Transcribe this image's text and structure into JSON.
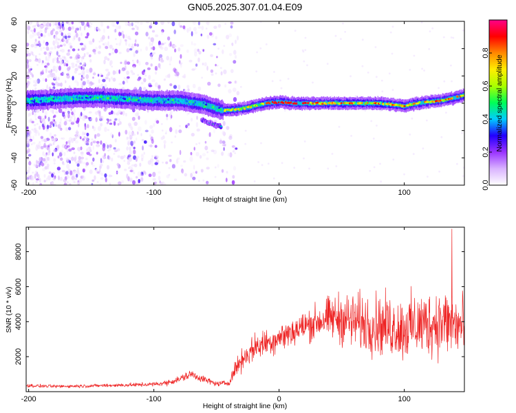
{
  "title": "GN05.2025.307.01.04.E09",
  "colors": {
    "snr_line": "#ee2222",
    "colorbar_stops": [
      "#ffffff",
      "#d9b3ff",
      "#9933ff",
      "#2200ff",
      "#00ccff",
      "#00ff55",
      "#aaff00",
      "#ffee00",
      "#ff8800",
      "#ff0000",
      "#ff0088"
    ]
  },
  "chart_data": [
    {
      "type": "heatmap",
      "name": "spectrogram",
      "title": "GN05.2025.307.01.04.E09",
      "xlabel": "Height of straight line (km)",
      "ylabel": "Frequency (Hz)",
      "xlim": [
        -202,
        148
      ],
      "ylim": [
        -60,
        60
      ],
      "xticks": [
        -200,
        -100,
        0,
        100
      ],
      "yticks": [
        60,
        40,
        20,
        0,
        -20,
        -40,
        -60
      ],
      "colorbar": {
        "label": "Normalized spectral amplitude",
        "range": [
          0,
          1
        ],
        "ticks": [
          0.0,
          0.2,
          0.4,
          0.6,
          0.8
        ]
      },
      "ridge": {
        "description": "dominant frequency ridge",
        "x": [
          -202,
          -180,
          -160,
          -140,
          -120,
          -100,
          -80,
          -60,
          -50,
          -45,
          -40,
          -30,
          -20,
          -10,
          0,
          10,
          20,
          30,
          40,
          50,
          60,
          70,
          80,
          90,
          100,
          110,
          120,
          130,
          140,
          148
        ],
        "y": [
          2,
          3,
          4,
          4,
          3,
          2,
          2,
          -1,
          -4,
          -5,
          -5,
          -4,
          -2,
          0,
          1,
          0,
          0,
          0,
          0,
          0,
          0,
          0,
          0,
          -1,
          -2,
          0,
          1,
          2,
          4,
          6
        ]
      },
      "secondary_branch": {
        "x": [
          -62,
          -58,
          -54,
          -50,
          -46
        ],
        "y": [
          -12,
          -14,
          -15,
          -16,
          -17
        ]
      }
    },
    {
      "type": "line",
      "name": "snr",
      "xlabel": "Height of straight line (km)",
      "ylabel": "SNR (10 * v/v)",
      "xlim": [
        -202,
        148
      ],
      "ylim": [
        0,
        9400
      ],
      "xticks": [
        -200,
        -100,
        0,
        100
      ],
      "yticks": [
        2000,
        4000,
        6000,
        8000
      ],
      "envelope": {
        "x": [
          -202,
          -180,
          -160,
          -140,
          -120,
          -100,
          -90,
          -80,
          -70,
          -60,
          -50,
          -40,
          -35,
          -30,
          -20,
          -10,
          0,
          10,
          20,
          30,
          40,
          50,
          60,
          70,
          80,
          90,
          100,
          110,
          120,
          130,
          140,
          148
        ],
        "mean": [
          350,
          300,
          320,
          350,
          380,
          420,
          500,
          700,
          1000,
          700,
          450,
          500,
          1300,
          1800,
          2500,
          2800,
          3100,
          3400,
          3700,
          4000,
          4200,
          4200,
          4000,
          3900,
          3800,
          3700,
          3600,
          3800,
          3900,
          4000,
          3800,
          3700
        ],
        "spread": [
          150,
          130,
          140,
          150,
          160,
          180,
          230,
          300,
          400,
          300,
          200,
          250,
          700,
          900,
          1100,
          1200,
          1200,
          1300,
          1400,
          1500,
          1800,
          2200,
          2400,
          2500,
          2600,
          2600,
          2700,
          2800,
          2800,
          2900,
          2900,
          2800
        ]
      },
      "peak": {
        "x": 138,
        "y": 9300
      }
    }
  ]
}
